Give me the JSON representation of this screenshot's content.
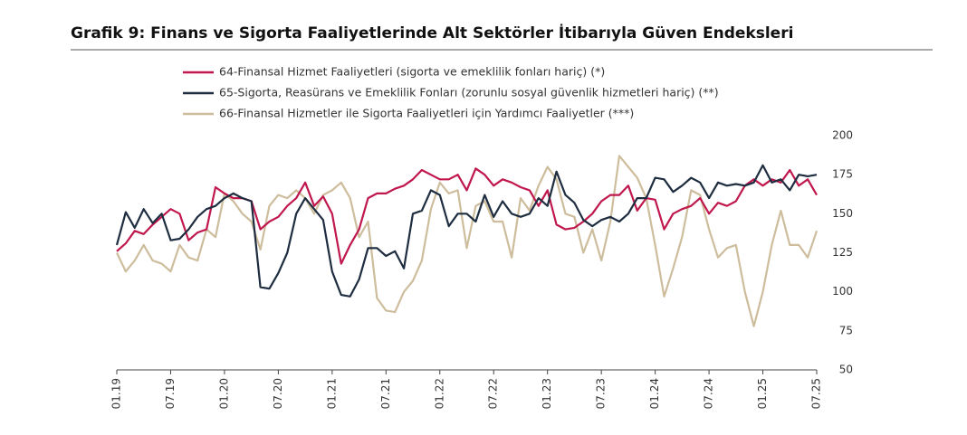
{
  "chart_data": {
    "type": "line",
    "title": "Grafik 9:  Finans ve Sigorta Faaliyetlerinde Alt Sektörler İtibarıyla Güven Endeksleri",
    "categories": [
      "01.19",
      null,
      null,
      null,
      null,
      null,
      "07.19",
      null,
      null,
      null,
      null,
      null,
      "01.20",
      null,
      null,
      null,
      null,
      null,
      "07.20",
      null,
      null,
      null,
      null,
      null,
      "01.21",
      null,
      null,
      null,
      null,
      null,
      "07.21",
      null,
      null,
      null,
      null,
      null,
      "01.22",
      null,
      null,
      null,
      null,
      null,
      "07.22",
      null,
      null,
      null,
      null,
      null,
      "01.23",
      null,
      null,
      null,
      null,
      null,
      "07.23",
      null,
      null,
      null,
      null,
      null,
      "01.24",
      null,
      null,
      null,
      null,
      null,
      "07.24",
      null,
      null,
      null,
      null,
      null,
      "01.25",
      null,
      null,
      null,
      null,
      null,
      "07.25"
    ],
    "series": [
      {
        "name": "64-Finansal Hizmet Faaliyetleri (sigorta ve emeklilik fonları hariç) (*)",
        "color": "#c0174d",
        "values": [
          126,
          131,
          139,
          137,
          143,
          148,
          153,
          150,
          133,
          138,
          140,
          167,
          163,
          160,
          160,
          158,
          140,
          145,
          148,
          155,
          160,
          170,
          155,
          161,
          150,
          118,
          130,
          140,
          160,
          163,
          163,
          166,
          168,
          172,
          178,
          175,
          172,
          172,
          175,
          165,
          179,
          175,
          168,
          172,
          170,
          167,
          165,
          155,
          165,
          143,
          140,
          141,
          145,
          150,
          158,
          162,
          162,
          168,
          152,
          160,
          159,
          140,
          150,
          153,
          155,
          160,
          150,
          157,
          155,
          158,
          168,
          172,
          168,
          172,
          170,
          178,
          168,
          172,
          162
        ]
      },
      {
        "name": "65-Sigorta, Reasürans ve Emeklilik Fonları (zorunlu sosyal güvenlik hizmetleri hariç) (**)",
        "color": "#1e2d40",
        "values": [
          130,
          151,
          141,
          153,
          144,
          150,
          133,
          134,
          140,
          148,
          153,
          155,
          160,
          163,
          160,
          158,
          103,
          102,
          112,
          125,
          150,
          160,
          153,
          146,
          113,
          98,
          97,
          108,
          128,
          128,
          123,
          126,
          115,
          150,
          152,
          165,
          162,
          142,
          150,
          150,
          145,
          162,
          148,
          158,
          150,
          148,
          150,
          160,
          155,
          177,
          162,
          157,
          146,
          142,
          146,
          148,
          145,
          150,
          160,
          160,
          173,
          172,
          164,
          168,
          173,
          170,
          160,
          170,
          168,
          169,
          168,
          170,
          181,
          170,
          172,
          165,
          175,
          174,
          175
        ]
      },
      {
        "name": "66-Finansal Hizmetler ile Sigorta Faaliyetleri için Yardımcı Faaliyetler (***)",
        "color": "#cdbd9c",
        "values": [
          125,
          113,
          120,
          130,
          120,
          118,
          113,
          130,
          122,
          120,
          140,
          135,
          163,
          158,
          150,
          145,
          127,
          155,
          162,
          160,
          165,
          160,
          150,
          162,
          165,
          170,
          160,
          135,
          145,
          96,
          88,
          87,
          100,
          107,
          120,
          153,
          170,
          163,
          165,
          128,
          155,
          158,
          145,
          145,
          122,
          160,
          152,
          168,
          180,
          172,
          150,
          148,
          125,
          140,
          120,
          145,
          187,
          180,
          173,
          160,
          130,
          97,
          115,
          135,
          165,
          162,
          140,
          122,
          128,
          130,
          100,
          78,
          100,
          130,
          152,
          130,
          130,
          122,
          139
        ]
      }
    ],
    "ylim": [
      50,
      200
    ],
    "yticks": [
      50,
      75,
      100,
      125,
      150,
      175,
      200
    ]
  }
}
